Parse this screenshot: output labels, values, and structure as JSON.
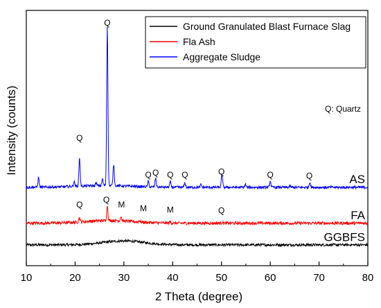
{
  "chart_data": {
    "type": "line",
    "xlabel": "2 Theta (degree)",
    "ylabel": "Intensity (counts)",
    "xlim": [
      10,
      80
    ],
    "x_ticks": [
      10,
      20,
      30,
      40,
      50,
      60,
      70,
      80
    ],
    "y_ticks_visible": false,
    "grid": false,
    "legend_position": "top-right",
    "note": "Q: Quartz",
    "series": [
      {
        "name": "Ground Granulated Blast Furnace Slag",
        "tag": "GGBFS",
        "color": "#000000",
        "baseline": 0.0,
        "hump": {
          "center": 30,
          "width": 6,
          "height": 0.018
        },
        "noise": 0.006,
        "peaks": []
      },
      {
        "name": "Fla Ash",
        "tag": "FA",
        "color": "#ff0000",
        "baseline": 0.1,
        "hump": {
          "center": 27,
          "width": 7,
          "height": 0.012
        },
        "noise": 0.007,
        "peaks": [
          {
            "x": 20.9,
            "h": 0.02
          },
          {
            "x": 26.6,
            "h": 0.07
          },
          {
            "x": 29.4,
            "h": 0.02
          },
          {
            "x": 33.2,
            "h": 0.008
          },
          {
            "x": 39.5,
            "h": 0.006
          },
          {
            "x": 50.2,
            "h": 0.005
          }
        ]
      },
      {
        "name": "Aggregate Sludge",
        "tag": "AS",
        "color": "#0000ff",
        "baseline": 0.265,
        "hump": {
          "center": 26,
          "width": 8,
          "height": 0.008
        },
        "noise": 0.006,
        "peaks": [
          {
            "x": 12.5,
            "h": 0.045
          },
          {
            "x": 19.8,
            "h": 0.022
          },
          {
            "x": 20.9,
            "h": 0.13
          },
          {
            "x": 24.3,
            "h": 0.012
          },
          {
            "x": 25.6,
            "h": 0.03
          },
          {
            "x": 26.6,
            "h": 0.74
          },
          {
            "x": 27.9,
            "h": 0.1
          },
          {
            "x": 35.0,
            "h": 0.025
          },
          {
            "x": 36.5,
            "h": 0.04
          },
          {
            "x": 39.5,
            "h": 0.025
          },
          {
            "x": 42.5,
            "h": 0.02
          },
          {
            "x": 45.8,
            "h": 0.012
          },
          {
            "x": 50.1,
            "h": 0.06
          },
          {
            "x": 54.9,
            "h": 0.014
          },
          {
            "x": 60.0,
            "h": 0.03
          },
          {
            "x": 64.0,
            "h": 0.006
          },
          {
            "x": 68.1,
            "h": 0.025
          }
        ]
      }
    ],
    "peak_labels": [
      {
        "text": "Q",
        "x": 26.6,
        "y": 1.01
      },
      {
        "text": "Q",
        "x": 20.9,
        "y": 0.48
      },
      {
        "text": "Q",
        "x": 35.0,
        "y": 0.31
      },
      {
        "text": "Q",
        "x": 36.5,
        "y": 0.32
      },
      {
        "text": "Q",
        "x": 39.5,
        "y": 0.31
      },
      {
        "text": "Q",
        "x": 42.5,
        "y": 0.31
      },
      {
        "text": "Q",
        "x": 50.0,
        "y": 0.325
      },
      {
        "text": "Q",
        "x": 60.0,
        "y": 0.31
      },
      {
        "text": "Q",
        "x": 68.0,
        "y": 0.305
      },
      {
        "text": "Q",
        "x": 20.9,
        "y": 0.172
      },
      {
        "text": "Q",
        "x": 26.4,
        "y": 0.195
      },
      {
        "text": "M",
        "x": 29.5,
        "y": 0.172
      },
      {
        "text": "M",
        "x": 34.0,
        "y": 0.155
      },
      {
        "text": "M",
        "x": 39.5,
        "y": 0.148
      },
      {
        "text": "Q",
        "x": 50.0,
        "y": 0.145
      }
    ]
  },
  "colors": {
    "axis": "#000000",
    "background": "#ffffff"
  }
}
